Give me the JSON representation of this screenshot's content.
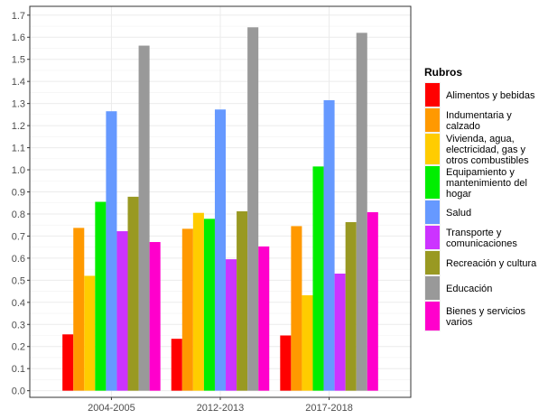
{
  "chart_data": {
    "type": "bar",
    "categories": [
      "2004-2005",
      "2012-2013",
      "2017-2018"
    ],
    "ylim": [
      -0.03,
      1.74
    ],
    "yticks": [
      "0.0",
      "0.1",
      "0.2",
      "0.3",
      "0.4",
      "0.5",
      "0.6",
      "0.7",
      "0.8",
      "0.9",
      "1.0",
      "1.1",
      "1.2",
      "1.3",
      "1.4",
      "1.5",
      "1.6",
      "1.7"
    ],
    "grid": true,
    "legend": {
      "title": "Rubros",
      "placement": "right"
    },
    "series": [
      {
        "name": "Alimentos y bebidas",
        "label_lines": [
          "Alimentos y bebidas"
        ],
        "color": "#ff0000",
        "values": [
          0.255,
          0.235,
          0.25
        ]
      },
      {
        "name": "Indumentaria y calzado",
        "label_lines": [
          "Indumentaria y",
          "calzado"
        ],
        "color": "#ff9900",
        "values": [
          0.737,
          0.733,
          0.745
        ]
      },
      {
        "name": "Vivienda, agua, electricidad, gas y otros combustibles",
        "label_lines": [
          "Vivienda, agua,",
          "electricidad, gas y",
          "otros combustibles"
        ],
        "color": "#ffcc00",
        "values": [
          0.52,
          0.805,
          0.432
        ]
      },
      {
        "name": "Equipamiento y mantenimiento del hogar",
        "label_lines": [
          "Equipamiento y",
          "mantenimiento del",
          "hogar"
        ],
        "color": "#00ee00",
        "values": [
          0.855,
          0.778,
          1.015
        ]
      },
      {
        "name": "Salud",
        "label_lines": [
          "Salud"
        ],
        "color": "#6699ff",
        "values": [
          1.265,
          1.273,
          1.315
        ]
      },
      {
        "name": "Transporte y comunicaciones",
        "label_lines": [
          "Transporte y",
          "comunicaciones"
        ],
        "color": "#cc33ff",
        "values": [
          0.722,
          0.595,
          0.53
        ]
      },
      {
        "name": "Recreación y cultura",
        "label_lines": [
          "Recreación y cultura"
        ],
        "color": "#999922",
        "values": [
          0.878,
          0.812,
          0.763
        ]
      },
      {
        "name": "Educación",
        "label_lines": [
          "Educación"
        ],
        "color": "#999999",
        "values": [
          1.562,
          1.645,
          1.62
        ]
      },
      {
        "name": "Bienes y servicios varios",
        "label_lines": [
          "Bienes y servicios",
          "varios"
        ],
        "color": "#ff00cc",
        "values": [
          0.673,
          0.653,
          0.808
        ]
      }
    ]
  }
}
